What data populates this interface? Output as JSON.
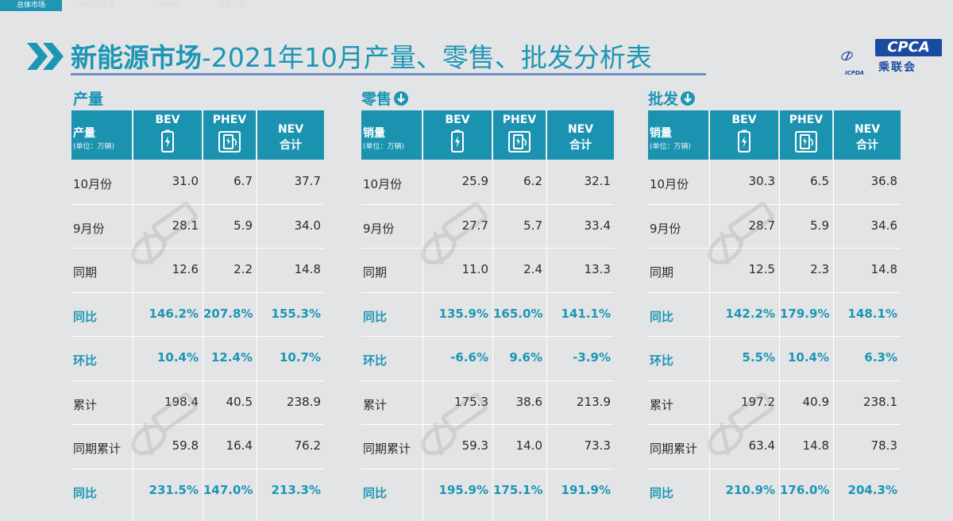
{
  "tabs": [
    {
      "label": "总体市场",
      "active": true
    },
    {
      "label": "新能源市场",
      "active": false
    },
    {
      "label": "厂商排名",
      "active": false
    },
    {
      "label": "市场分析",
      "active": false
    }
  ],
  "title_bold": "新能源市场",
  "title_rest": "-2021年10月产量、零售、批发分析表",
  "logo": {
    "text": "CPCA",
    "sub": "乘联会",
    "emblem_text": "ICPDA"
  },
  "colors": {
    "accent": "#1c96b4",
    "header": "#1b93b0",
    "logo": "#1b4aa1"
  },
  "columns": {
    "bev": "BEV",
    "phev": "PHEV",
    "nev": "NEV",
    "nev_sub": "合计"
  },
  "unit": "(单位：万辆)",
  "panels": [
    {
      "section": "产量",
      "down_icon": false,
      "hdr": "产量",
      "rows": [
        {
          "label": "10月份",
          "bev": "31.0",
          "phev": "6.7",
          "nev": "37.7",
          "highlight": false
        },
        {
          "label": "9月份",
          "bev": "28.1",
          "phev": "5.9",
          "nev": "34.0",
          "highlight": false
        },
        {
          "label": "同期",
          "bev": "12.6",
          "phev": "2.2",
          "nev": "14.8",
          "highlight": false
        },
        {
          "label": "同比",
          "bev": "146.2%",
          "phev": "207.8%",
          "nev": "155.3%",
          "highlight": true
        },
        {
          "label": "环比",
          "bev": "10.4%",
          "phev": "12.4%",
          "nev": "10.7%",
          "highlight": true
        },
        {
          "label": "累计",
          "bev": "198.4",
          "phev": "40.5",
          "nev": "238.9",
          "highlight": false
        },
        {
          "label": "同期累计",
          "bev": "59.8",
          "phev": "16.4",
          "nev": "76.2",
          "highlight": false
        },
        {
          "label": "同比",
          "bev": "231.5%",
          "phev": "147.0%",
          "nev": "213.3%",
          "highlight": true
        }
      ]
    },
    {
      "section": "零售",
      "down_icon": true,
      "hdr": "销量",
      "rows": [
        {
          "label": "10月份",
          "bev": "25.9",
          "phev": "6.2",
          "nev": "32.1",
          "highlight": false
        },
        {
          "label": "9月份",
          "bev": "27.7",
          "phev": "5.7",
          "nev": "33.4",
          "highlight": false
        },
        {
          "label": "同期",
          "bev": "11.0",
          "phev": "2.4",
          "nev": "13.3",
          "highlight": false
        },
        {
          "label": "同比",
          "bev": "135.9%",
          "phev": "165.0%",
          "nev": "141.1%",
          "highlight": true
        },
        {
          "label": "环比",
          "bev": "-6.6%",
          "phev": "9.6%",
          "nev": "-3.9%",
          "highlight": true
        },
        {
          "label": "累计",
          "bev": "175.3",
          "phev": "38.6",
          "nev": "213.9",
          "highlight": false
        },
        {
          "label": "同期累计",
          "bev": "59.3",
          "phev": "14.0",
          "nev": "73.3",
          "highlight": false
        },
        {
          "label": "同比",
          "bev": "195.9%",
          "phev": "175.1%",
          "nev": "191.9%",
          "highlight": true
        }
      ]
    },
    {
      "section": "批发",
      "down_icon": true,
      "hdr": "销量",
      "rows": [
        {
          "label": "10月份",
          "bev": "30.3",
          "phev": "6.5",
          "nev": "36.8",
          "highlight": false
        },
        {
          "label": "9月份",
          "bev": "28.7",
          "phev": "5.9",
          "nev": "34.6",
          "highlight": false
        },
        {
          "label": "同期",
          "bev": "12.5",
          "phev": "2.3",
          "nev": "14.8",
          "highlight": false
        },
        {
          "label": "同比",
          "bev": "142.2%",
          "phev": "179.9%",
          "nev": "148.1%",
          "highlight": true
        },
        {
          "label": "环比",
          "bev": "5.5%",
          "phev": "10.4%",
          "nev": "6.3%",
          "highlight": true
        },
        {
          "label": "累计",
          "bev": "197.2",
          "phev": "40.9",
          "nev": "238.1",
          "highlight": false
        },
        {
          "label": "同期累计",
          "bev": "63.4",
          "phev": "14.8",
          "nev": "78.3",
          "highlight": false
        },
        {
          "label": "同比",
          "bev": "210.9%",
          "phev": "176.0%",
          "nev": "204.3%",
          "highlight": true
        }
      ]
    }
  ]
}
